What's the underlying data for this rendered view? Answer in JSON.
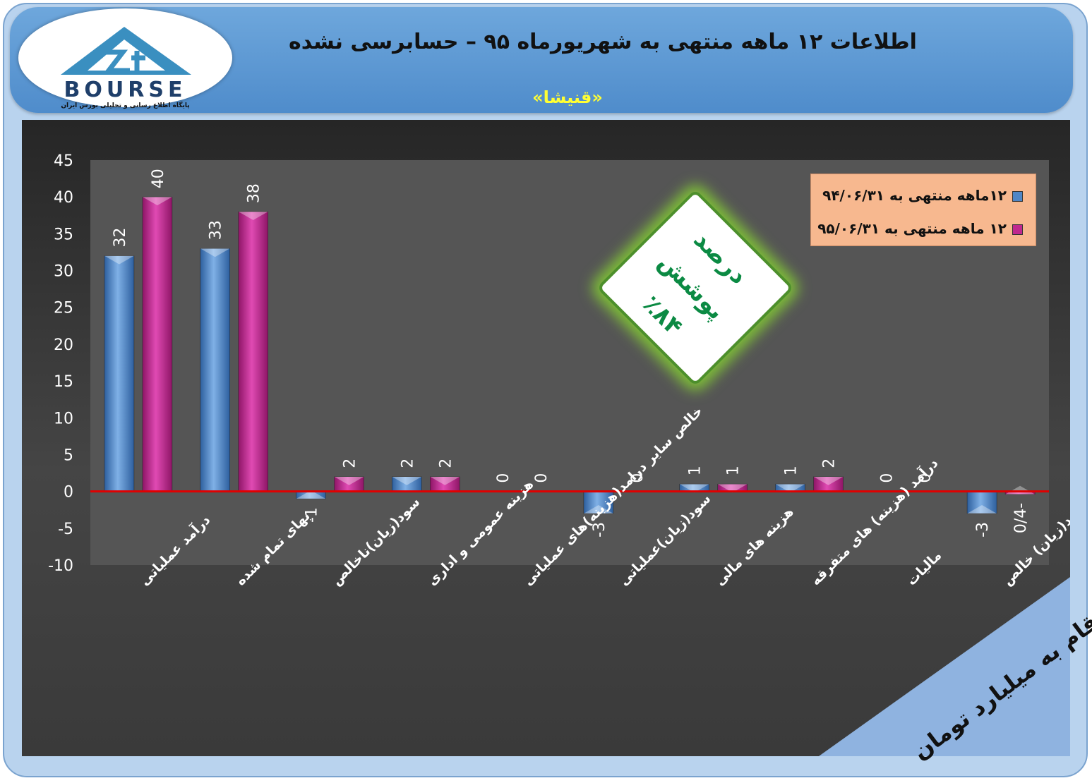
{
  "header": {
    "title": "اطلاعات ۱۲  ماهه منتهی به شهریورماه ۹۵ – حسابرسی نشده",
    "subtitle": "«قنیشا»"
  },
  "logo": {
    "word": "BOURSE",
    "tagline": "پایگاه اطلاع رسانی و تحلیلی بورس ایران"
  },
  "badge": {
    "line1": "درصد پوشش",
    "line2": "٪۸۴"
  },
  "corner_note": "ارقام به میلیارد تومان",
  "colors": {
    "series1": "#4f86c6",
    "series2": "#c0288f",
    "zero_line": "#e00000",
    "legend_bg": "#f7b88f"
  },
  "chart_data": {
    "type": "bar",
    "categories": [
      "درآمد عملیاتی",
      "بهای تمام شده",
      "سود(زیان)ناخالص",
      "هزینه عمومی و اداری",
      "خالص سایر درامد(هزینه)های عملیاتی",
      "سود(زیان)عملیاتی",
      "هزینه های مالی",
      "درآمد (هزینه) های متفرقه",
      "مالیات",
      "سود(زیان) خالص"
    ],
    "series": [
      {
        "name": "۱۲ماهه منتهی به ۹۴/۰۶/۳۱",
        "values": [
          32,
          33,
          -1,
          2,
          0,
          -3,
          1,
          1,
          0,
          -3
        ],
        "labels": [
          "32",
          "33",
          "-1",
          "2",
          "0",
          "-3",
          "1",
          "1",
          "0",
          "-3"
        ]
      },
      {
        "name": "۱۲ ماهه منتهی به ۹۵/۰۶/۳۱",
        "values": [
          40,
          38,
          2,
          2,
          0,
          0,
          1,
          2,
          0,
          -0.4
        ],
        "labels": [
          "40",
          "38",
          "2",
          "2",
          "0",
          "0",
          "1",
          "2",
          "0",
          "0/4-"
        ]
      }
    ],
    "y_ticks": [
      "45",
      "40",
      "35",
      "30",
      "25",
      "20",
      "15",
      "10",
      "5",
      "0",
      "-5",
      "-10"
    ],
    "ylim": [
      -10,
      45
    ],
    "legend_position": "top-right",
    "grid": false
  }
}
